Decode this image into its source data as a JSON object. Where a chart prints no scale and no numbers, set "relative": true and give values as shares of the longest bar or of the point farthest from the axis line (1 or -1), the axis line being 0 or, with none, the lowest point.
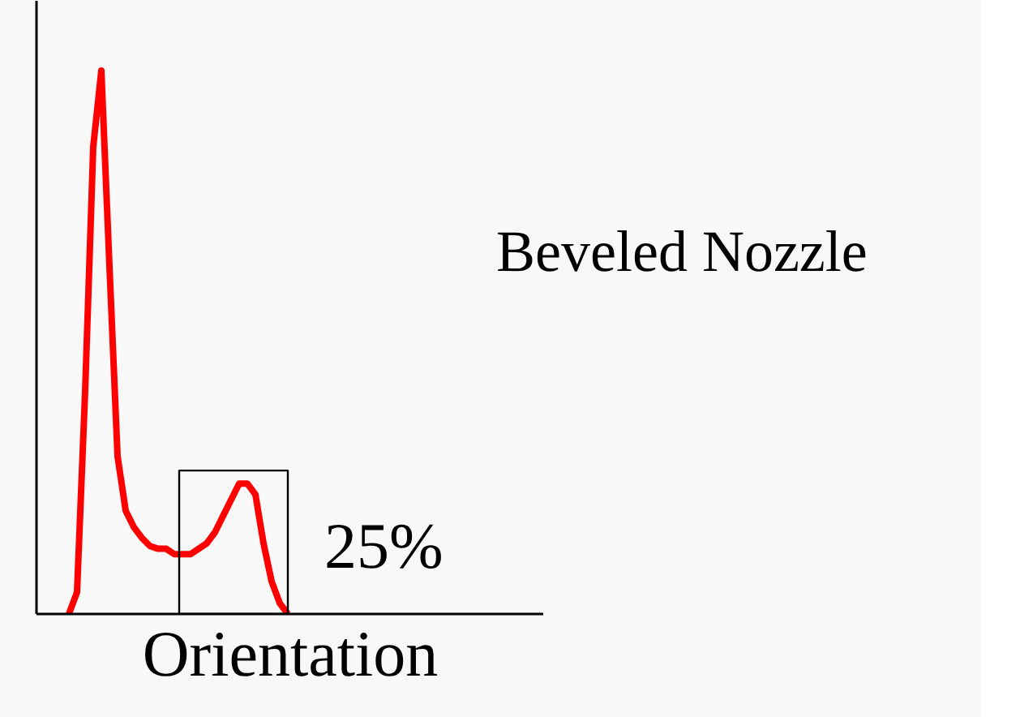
{
  "chart_data": {
    "type": "line",
    "title": "Beveled Nozzle",
    "xlabel": "Orientation",
    "relative": true,
    "categories": [
      null,
      null,
      null,
      null,
      null,
      null,
      null,
      null,
      null,
      null,
      null,
      null,
      null,
      null,
      null,
      null,
      null,
      null,
      null,
      null,
      null,
      null,
      null,
      null,
      null,
      null,
      null,
      null
    ],
    "series": [
      {
        "color": "#ff0000",
        "values": [
          0,
          0.04,
          0.41,
          0.86,
          1,
          0.64,
          0.29,
          0.19,
          0.16,
          0.14,
          0.125,
          0.12,
          0.12,
          0.11,
          0.11,
          0.11,
          0.12,
          0.13,
          0.15,
          0.18,
          0.21,
          0.24,
          0.24,
          0.22,
          0.13,
          0.06,
          0.02,
          0
        ]
      }
    ],
    "annotations": [
      "25%"
    ],
    "tick_labels": false,
    "line_style": "solid"
  }
}
